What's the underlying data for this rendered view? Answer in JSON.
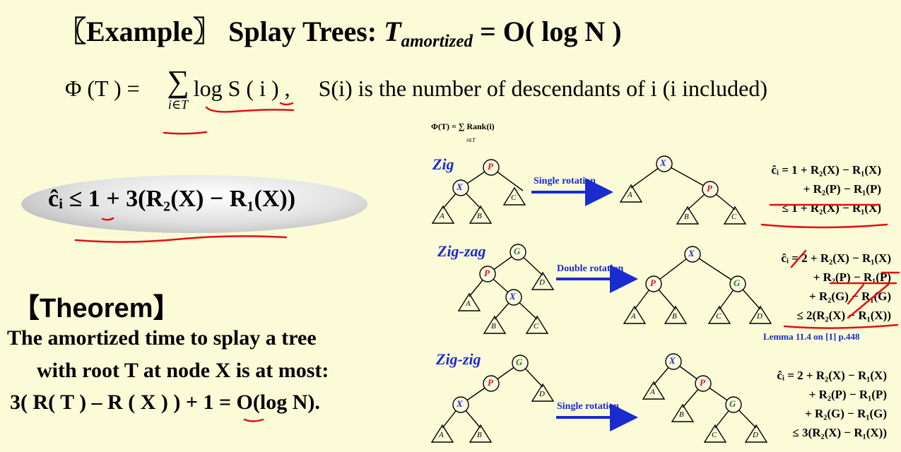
{
  "title": {
    "prefix": "〖Example〗 Splay Trees: ",
    "T": "T",
    "sub": "amortized",
    "rest": " = O( log N )"
  },
  "potential": {
    "lhs": "Φ (T ) = ",
    "sum": "∑",
    "sub": "i∈T",
    "rhs": " log  S ( i )",
    "comma": " ,",
    "desc": "S(i) is the number of descendants of i (i included)"
  },
  "rank_def": "Φ(T) = ∑ Rank(i)",
  "rank_sub": "i∈T",
  "bound": "ĉᵢ ≤ 1 + 3(R₂(X) − R₁(X))",
  "theorem": {
    "head": "【Theorem】",
    "line1": "The amortized time to splay a tree",
    "line2": "with root T at node X is at most:",
    "line3": "3( R( T ) – R ( X ) ) + 1 = O(log N)."
  },
  "cases": {
    "zig": {
      "name": "Zig",
      "rotation": "Single rotation",
      "f1": "ĉᵢ = 1 + R₂(X) − R₁(X)",
      "f2": "+ R₂(P) − R₁(P)",
      "f3": "≤ 1 + R₂(X) − R₁(X)"
    },
    "zigzag": {
      "name": "Zig-zag",
      "rotation": "Double rotation",
      "f1": "ĉᵢ = 2 + R₂(X) − R₁(X)",
      "f2": "+ R₂(P) − R₁(P)",
      "f3": "+ R₂(G) − R₁(G)",
      "f4": "≤ 2(R₂(X) − R₁(X))",
      "lemma": "Lemma 11.4 on [1] p.448"
    },
    "zigzig": {
      "name": "Zig-zig",
      "rotation": "Single rotation",
      "f1": "ĉᵢ = 2 + R₂(X) − R₁(X)",
      "f2": "+ R₂(P) − R₁(P)",
      "f3": "+ R₂(G) − R₁(G)",
      "f4": "≤ 3(R₂(X) − R₁(X))"
    }
  },
  "nodes": {
    "X": "X",
    "P": "P",
    "G": "G",
    "A": "A",
    "B": "B",
    "C": "C",
    "D": "D"
  },
  "colors": {
    "background": "#fbfbd8",
    "node_x": "#1a2bd0",
    "node_p": "#d01a1a",
    "node_g": "#1a8a1a",
    "arrow": "#1a2bd0",
    "underline": "#e01010"
  }
}
